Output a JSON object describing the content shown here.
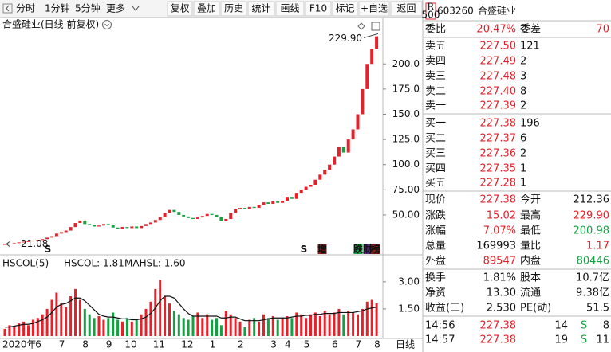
{
  "toolbar": {
    "left": [
      "分时",
      "1分钟",
      "5分钟",
      "更多"
    ],
    "right": [
      "复权",
      "叠加",
      "历史",
      "统计",
      "画线",
      "F10",
      "标记",
      "+自选",
      "返回"
    ]
  },
  "chart_data": [
    {
      "type": "candlestick",
      "title": "合盛硅业(日线 前复权)",
      "categories": [
        "2020年",
        null,
        null,
        null,
        null,
        null,
        null,
        "6",
        null,
        null,
        null,
        null,
        "7",
        null,
        null,
        null,
        null,
        "8",
        null,
        null,
        null,
        null,
        "9",
        null,
        null,
        null,
        "10",
        null,
        null,
        null,
        null,
        null,
        "11",
        null,
        null,
        null,
        null,
        null,
        "12",
        null,
        null,
        null,
        null,
        null,
        "1",
        null,
        null,
        null,
        null,
        null,
        "2",
        null,
        null,
        null,
        null,
        null,
        null,
        "3",
        null,
        null,
        "4",
        null,
        null,
        null,
        "5",
        null,
        null,
        null,
        null,
        null,
        "6",
        null,
        null,
        null,
        null,
        "7",
        null,
        null,
        null,
        "8"
      ],
      "values": [
        21.1,
        21.5,
        22.0,
        22.8,
        23.5,
        24.0,
        24.6,
        25.2,
        26.0,
        27.5,
        29.0,
        31.5,
        33.0,
        34.5,
        38.0,
        42.0,
        44.5,
        41.0,
        40.0,
        38.5,
        39.5,
        41.0,
        40.0,
        37.5,
        36.0,
        38.0,
        37.0,
        38.5,
        37.0,
        39.0,
        41.0,
        42.5,
        45.0,
        48.0,
        52.0,
        55.0,
        53.0,
        50.0,
        48.5,
        47.0,
        46.0,
        47.5,
        49.0,
        51.0,
        50.0,
        48.0,
        44.0,
        46.0,
        52.0,
        55.5,
        57.0,
        56.0,
        58.0,
        57.0,
        60.0,
        62.5,
        61.0,
        63.5,
        62.0,
        64.0,
        68.0,
        66.0,
        72.0,
        75.0,
        78.0,
        80.0,
        85.0,
        90.0,
        95.0,
        100.0,
        108.0,
        118.0,
        112.0,
        125.0,
        135.0,
        150.0,
        175.0,
        200.0,
        215.0,
        227.38
      ],
      "up_color": "#e8202a",
      "down_color": "#15a043",
      "ylim": [
        12,
        235
      ],
      "yticks": [
        {
          "value": 50,
          "label": "50.00"
        },
        {
          "value": 75,
          "label": "75.00"
        },
        {
          "value": 100,
          "label": "100.0"
        },
        {
          "value": 125,
          "label": "125.0"
        },
        {
          "value": 150,
          "label": "150.0"
        },
        {
          "value": 175,
          "label": "175.0"
        },
        {
          "value": 200,
          "label": "200.0"
        }
      ],
      "max_annotation": {
        "value": 229.9,
        "label": "229.90"
      },
      "min_annotation": 21.08,
      "period_label": "日线",
      "events": [
        "S",
        "S",
        "增",
        "跌",
        "财",
        "榜"
      ]
    },
    {
      "type": "bar-line",
      "title": "HSCOL(5)",
      "legend": [
        "HSCOL: 1.81",
        "MAHSL: 1.60"
      ],
      "series": [
        {
          "color": "#e8202a",
          "values": [
            0.4,
            0.6,
            0.5,
            0.7,
            0.8,
            0.6,
            0.9,
            1.0,
            1.2,
            1.5,
            2.0,
            2.4,
            1.8,
            1.6,
            2.2,
            2.6,
            2.0,
            1.5,
            1.2,
            1.0,
            1.1,
            0.9,
            1.0,
            1.3,
            0.9,
            0.8,
            1.0,
            0.8,
            0.9,
            1.2,
            1.5,
            1.9,
            2.6,
            3.1,
            2.2,
            1.8,
            1.4,
            1.2,
            1.0,
            0.9,
            1.1,
            1.3,
            1.0,
            1.2,
            0.9,
            1.0,
            0.6,
            1.4,
            1.2,
            1.0,
            0.8,
            0.5,
            0.9,
            1.0,
            0.8,
            1.2,
            1.0,
            1.1,
            0.9,
            1.0,
            1.1,
            1.0,
            1.3,
            1.2,
            1.0,
            1.2,
            1.3,
            1.1,
            1.4,
            1.2,
            1.3,
            1.5,
            1.2,
            1.4,
            1.3,
            1.2,
            1.5,
            1.9,
            2.0,
            1.81
          ]
        },
        {
          "color": "#111111",
          "values": [
            0.5,
            0.5,
            0.55,
            0.6,
            0.65,
            0.65,
            0.7,
            0.8,
            0.9,
            1.05,
            1.3,
            1.6,
            1.75,
            1.8,
            1.95,
            2.1,
            2.1,
            1.95,
            1.7,
            1.45,
            1.2,
            1.1,
            1.05,
            1.05,
            1.0,
            0.95,
            0.95,
            0.9,
            0.9,
            0.95,
            1.05,
            1.25,
            1.55,
            1.95,
            2.2,
            2.2,
            2.1,
            1.8,
            1.5,
            1.25,
            1.1,
            1.1,
            1.1,
            1.1,
            1.1,
            1.1,
            1.0,
            1.0,
            1.05,
            1.05,
            0.95,
            0.85,
            0.85,
            0.85,
            0.85,
            0.9,
            0.95,
            1.0,
            1.0,
            1.0,
            1.0,
            1.05,
            1.1,
            1.1,
            1.15,
            1.15,
            1.2,
            1.2,
            1.25,
            1.25,
            1.25,
            1.3,
            1.3,
            1.3,
            1.3,
            1.35,
            1.4,
            1.5,
            1.55,
            1.6
          ]
        }
      ],
      "ylim": [
        0,
        4.4
      ],
      "yticks": [
        {
          "value": 1.5,
          "label": "1.50"
        },
        {
          "value": 3,
          "label": "3.00"
        }
      ]
    }
  ],
  "quote": {
    "badge": [
      "R",
      "500"
    ],
    "code": "603260",
    "name": "合盛硅业",
    "committee": [
      "委比",
      "20.47%",
      "委差",
      "70"
    ],
    "asks": [
      [
        "卖五",
        "227.50",
        "121"
      ],
      [
        "卖四",
        "227.49",
        "2"
      ],
      [
        "卖三",
        "227.48",
        "3"
      ],
      [
        "卖二",
        "227.40",
        "8"
      ],
      [
        "卖一",
        "227.39",
        "2"
      ]
    ],
    "bids": [
      [
        "买一",
        "227.38",
        "196"
      ],
      [
        "买二",
        "227.37",
        "6"
      ],
      [
        "买三",
        "227.36",
        "2"
      ],
      [
        "买四",
        "227.35",
        "1"
      ],
      [
        "买五",
        "227.28",
        "1"
      ]
    ],
    "stats": [
      [
        "现价",
        "227.38",
        "今开",
        "212.36"
      ],
      [
        "涨跌",
        "15.02",
        "最高",
        "229.90"
      ],
      [
        "涨幅",
        "7.07%",
        "最低",
        "200.98"
      ],
      [
        "总量",
        "169993",
        "量比",
        "1.17"
      ],
      [
        "外盘",
        "89547",
        "内盘",
        "80446"
      ]
    ],
    "fundamentals": [
      [
        "换手",
        "1.81%",
        "股本",
        "10.7亿"
      ],
      [
        "净资",
        "13.30",
        "流通",
        "9.38亿"
      ],
      [
        "收益(三)",
        "2.530",
        "PE(动)",
        "51.5"
      ]
    ],
    "trades": [
      [
        "14:56",
        "227.38",
        "14",
        "S",
        "8"
      ],
      [
        "14:57",
        "227.38",
        "19",
        "S",
        "11"
      ]
    ]
  }
}
